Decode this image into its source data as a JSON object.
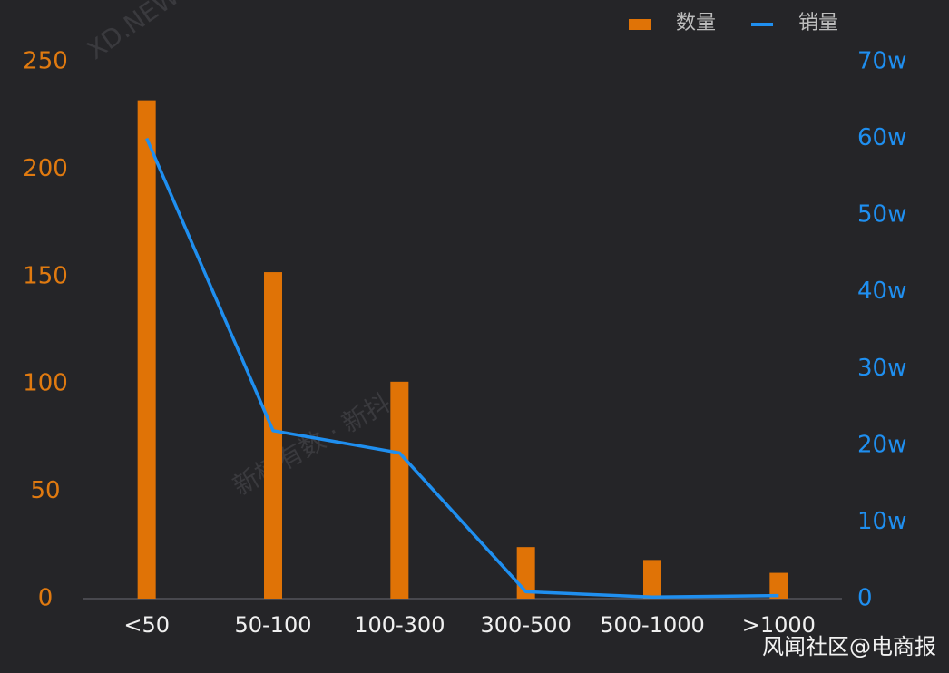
{
  "chart_data": {
    "type": "bar",
    "categories": [
      "<50",
      "50-100",
      "100-300",
      "300-500",
      "500-1000",
      ">1000"
    ],
    "series": [
      {
        "name": "数量",
        "type": "bar",
        "color": "#e07306",
        "values": [
          232,
          152,
          101,
          24,
          18,
          12
        ]
      },
      {
        "name": "销量",
        "type": "line",
        "color": "#1f8ff0",
        "axis": "y2",
        "values": [
          60,
          21.9,
          19,
          0.9,
          0.2,
          0.4
        ]
      }
    ],
    "ylim": [
      0,
      250
    ],
    "yticks": [
      0,
      50,
      100,
      150,
      200,
      250
    ],
    "ytick_color": "#e07a10",
    "y2lim": [
      0,
      70
    ],
    "y2ticks": [
      0,
      {
        "value": 10,
        "label": "10w"
      },
      {
        "value": 20,
        "label": "20w"
      },
      {
        "value": 30,
        "label": "30w"
      },
      {
        "value": 40,
        "label": "40w"
      },
      {
        "value": 50,
        "label": "50w"
      },
      {
        "value": 60,
        "label": "60w"
      },
      {
        "value": 70,
        "label": "70w"
      }
    ],
    "y2tick_color": "#1f8ff0",
    "legend_position": "top-right",
    "watermarks": [
      "XD.NEWRANK.CN",
      "新榜有数 · 新抖"
    ],
    "source": "风闻社区@电商报"
  }
}
